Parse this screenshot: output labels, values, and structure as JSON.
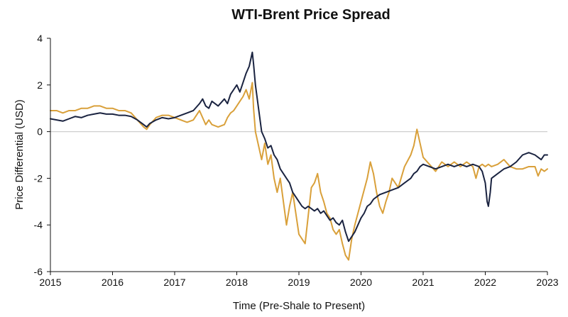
{
  "chart_data": {
    "type": "line",
    "title": "WTI-Brent Price Spread",
    "xlabel": "Time (Pre-Shale to Present)",
    "ylabel": "Price Differential (USD)",
    "x_ticks": [
      "2015",
      "2016",
      "2017",
      "2018",
      "2019",
      "2020",
      "2021",
      "2022",
      "2023"
    ],
    "y_ticks": [
      "4",
      "2",
      "0",
      "-2",
      "-4",
      "-6"
    ],
    "xlim": [
      2015,
      2023
    ],
    "ylim": [
      -6,
      4
    ],
    "zero_line": true,
    "grid": false,
    "legend": "none",
    "series": [
      {
        "color": "#1a2340",
        "points": [
          [
            2015.0,
            0.55
          ],
          [
            2015.1,
            0.5
          ],
          [
            2015.2,
            0.45
          ],
          [
            2015.3,
            0.55
          ],
          [
            2015.4,
            0.65
          ],
          [
            2015.5,
            0.6
          ],
          [
            2015.6,
            0.7
          ],
          [
            2015.7,
            0.75
          ],
          [
            2015.8,
            0.8
          ],
          [
            2015.9,
            0.75
          ],
          [
            2016.0,
            0.75
          ],
          [
            2016.1,
            0.7
          ],
          [
            2016.2,
            0.7
          ],
          [
            2016.3,
            0.65
          ],
          [
            2016.4,
            0.5
          ],
          [
            2016.5,
            0.3
          ],
          [
            2016.55,
            0.2
          ],
          [
            2016.6,
            0.35
          ],
          [
            2016.7,
            0.5
          ],
          [
            2016.8,
            0.6
          ],
          [
            2016.9,
            0.55
          ],
          [
            2017.0,
            0.6
          ],
          [
            2017.1,
            0.7
          ],
          [
            2017.2,
            0.8
          ],
          [
            2017.3,
            0.9
          ],
          [
            2017.4,
            1.2
          ],
          [
            2017.45,
            1.4
          ],
          [
            2017.5,
            1.1
          ],
          [
            2017.55,
            1.0
          ],
          [
            2017.6,
            1.3
          ],
          [
            2017.7,
            1.1
          ],
          [
            2017.8,
            1.4
          ],
          [
            2017.85,
            1.2
          ],
          [
            2017.9,
            1.6
          ],
          [
            2017.95,
            1.8
          ],
          [
            2018.0,
            2.0
          ],
          [
            2018.05,
            1.7
          ],
          [
            2018.1,
            2.1
          ],
          [
            2018.15,
            2.5
          ],
          [
            2018.2,
            2.8
          ],
          [
            2018.25,
            3.4
          ],
          [
            2018.27,
            2.9
          ],
          [
            2018.3,
            2.0
          ],
          [
            2018.35,
            1.0
          ],
          [
            2018.4,
            0.0
          ],
          [
            2018.45,
            -0.3
          ],
          [
            2018.5,
            -0.7
          ],
          [
            2018.55,
            -0.6
          ],
          [
            2018.6,
            -1.0
          ],
          [
            2018.65,
            -1.2
          ],
          [
            2018.7,
            -1.6
          ],
          [
            2018.75,
            -1.8
          ],
          [
            2018.8,
            -2.0
          ],
          [
            2018.85,
            -2.2
          ],
          [
            2018.9,
            -2.6
          ],
          [
            2018.95,
            -2.8
          ],
          [
            2019.0,
            -3.0
          ],
          [
            2019.05,
            -3.2
          ],
          [
            2019.1,
            -3.3
          ],
          [
            2019.15,
            -3.2
          ],
          [
            2019.2,
            -3.3
          ],
          [
            2019.25,
            -3.4
          ],
          [
            2019.3,
            -3.3
          ],
          [
            2019.35,
            -3.5
          ],
          [
            2019.4,
            -3.4
          ],
          [
            2019.45,
            -3.6
          ],
          [
            2019.5,
            -3.8
          ],
          [
            2019.55,
            -3.7
          ],
          [
            2019.6,
            -3.9
          ],
          [
            2019.65,
            -4.0
          ],
          [
            2019.7,
            -3.8
          ],
          [
            2019.75,
            -4.3
          ],
          [
            2019.8,
            -4.7
          ],
          [
            2019.85,
            -4.5
          ],
          [
            2019.9,
            -4.3
          ],
          [
            2019.95,
            -4.0
          ],
          [
            2020.0,
            -3.7
          ],
          [
            2020.05,
            -3.5
          ],
          [
            2020.1,
            -3.2
          ],
          [
            2020.15,
            -3.1
          ],
          [
            2020.2,
            -2.9
          ],
          [
            2020.25,
            -2.8
          ],
          [
            2020.3,
            -2.7
          ],
          [
            2020.4,
            -2.6
          ],
          [
            2020.5,
            -2.5
          ],
          [
            2020.6,
            -2.4
          ],
          [
            2020.7,
            -2.2
          ],
          [
            2020.8,
            -2.0
          ],
          [
            2020.85,
            -1.8
          ],
          [
            2020.9,
            -1.7
          ],
          [
            2020.95,
            -1.5
          ],
          [
            2021.0,
            -1.4
          ],
          [
            2021.1,
            -1.5
          ],
          [
            2021.2,
            -1.6
          ],
          [
            2021.3,
            -1.5
          ],
          [
            2021.4,
            -1.4
          ],
          [
            2021.5,
            -1.5
          ],
          [
            2021.6,
            -1.4
          ],
          [
            2021.7,
            -1.5
          ],
          [
            2021.8,
            -1.4
          ],
          [
            2021.9,
            -1.5
          ],
          [
            2021.95,
            -1.7
          ],
          [
            2022.0,
            -2.2
          ],
          [
            2022.03,
            -3.0
          ],
          [
            2022.05,
            -3.2
          ],
          [
            2022.08,
            -2.6
          ],
          [
            2022.1,
            -2.0
          ],
          [
            2022.2,
            -1.8
          ],
          [
            2022.3,
            -1.6
          ],
          [
            2022.4,
            -1.5
          ],
          [
            2022.5,
            -1.3
          ],
          [
            2022.6,
            -1.0
          ],
          [
            2022.7,
            -0.9
          ],
          [
            2022.8,
            -1.0
          ],
          [
            2022.85,
            -1.1
          ],
          [
            2022.9,
            -1.2
          ],
          [
            2022.95,
            -1.0
          ],
          [
            2023.0,
            -1.0
          ]
        ]
      },
      {
        "color": "#d9a03a",
        "points": [
          [
            2015.0,
            0.9
          ],
          [
            2015.1,
            0.9
          ],
          [
            2015.2,
            0.8
          ],
          [
            2015.3,
            0.9
          ],
          [
            2015.4,
            0.9
          ],
          [
            2015.5,
            1.0
          ],
          [
            2015.6,
            1.0
          ],
          [
            2015.7,
            1.1
          ],
          [
            2015.8,
            1.1
          ],
          [
            2015.9,
            1.0
          ],
          [
            2016.0,
            1.0
          ],
          [
            2016.1,
            0.9
          ],
          [
            2016.2,
            0.9
          ],
          [
            2016.3,
            0.8
          ],
          [
            2016.4,
            0.5
          ],
          [
            2016.5,
            0.2
          ],
          [
            2016.55,
            0.1
          ],
          [
            2016.6,
            0.3
          ],
          [
            2016.7,
            0.6
          ],
          [
            2016.8,
            0.7
          ],
          [
            2016.9,
            0.7
          ],
          [
            2017.0,
            0.6
          ],
          [
            2017.1,
            0.5
          ],
          [
            2017.2,
            0.4
          ],
          [
            2017.3,
            0.5
          ],
          [
            2017.4,
            0.9
          ],
          [
            2017.45,
            0.6
          ],
          [
            2017.5,
            0.3
          ],
          [
            2017.55,
            0.5
          ],
          [
            2017.6,
            0.3
          ],
          [
            2017.7,
            0.2
          ],
          [
            2017.8,
            0.3
          ],
          [
            2017.85,
            0.6
          ],
          [
            2017.9,
            0.8
          ],
          [
            2017.95,
            0.9
          ],
          [
            2018.0,
            1.1
          ],
          [
            2018.05,
            1.3
          ],
          [
            2018.1,
            1.5
          ],
          [
            2018.15,
            1.8
          ],
          [
            2018.2,
            1.4
          ],
          [
            2018.25,
            2.1
          ],
          [
            2018.27,
            1.0
          ],
          [
            2018.3,
            0.0
          ],
          [
            2018.35,
            -0.6
          ],
          [
            2018.4,
            -1.2
          ],
          [
            2018.45,
            -0.5
          ],
          [
            2018.5,
            -1.4
          ],
          [
            2018.55,
            -1.0
          ],
          [
            2018.6,
            -2.0
          ],
          [
            2018.65,
            -2.6
          ],
          [
            2018.7,
            -2.0
          ],
          [
            2018.75,
            -3.0
          ],
          [
            2018.8,
            -4.0
          ],
          [
            2018.85,
            -3.2
          ],
          [
            2018.9,
            -2.6
          ],
          [
            2018.95,
            -3.5
          ],
          [
            2019.0,
            -4.4
          ],
          [
            2019.05,
            -4.6
          ],
          [
            2019.1,
            -4.8
          ],
          [
            2019.15,
            -3.6
          ],
          [
            2019.2,
            -2.4
          ],
          [
            2019.25,
            -2.2
          ],
          [
            2019.3,
            -1.8
          ],
          [
            2019.35,
            -2.6
          ],
          [
            2019.4,
            -3.0
          ],
          [
            2019.45,
            -3.5
          ],
          [
            2019.5,
            -3.7
          ],
          [
            2019.55,
            -4.2
          ],
          [
            2019.6,
            -4.4
          ],
          [
            2019.65,
            -4.2
          ],
          [
            2019.7,
            -4.8
          ],
          [
            2019.75,
            -5.3
          ],
          [
            2019.8,
            -5.5
          ],
          [
            2019.85,
            -4.6
          ],
          [
            2019.9,
            -4.0
          ],
          [
            2019.95,
            -3.5
          ],
          [
            2020.0,
            -3.0
          ],
          [
            2020.05,
            -2.5
          ],
          [
            2020.1,
            -2.0
          ],
          [
            2020.15,
            -1.3
          ],
          [
            2020.2,
            -1.8
          ],
          [
            2020.25,
            -2.6
          ],
          [
            2020.3,
            -3.2
          ],
          [
            2020.35,
            -3.5
          ],
          [
            2020.4,
            -3.0
          ],
          [
            2020.45,
            -2.6
          ],
          [
            2020.5,
            -2.0
          ],
          [
            2020.6,
            -2.4
          ],
          [
            2020.7,
            -1.5
          ],
          [
            2020.8,
            -1.0
          ],
          [
            2020.85,
            -0.6
          ],
          [
            2020.9,
            0.1
          ],
          [
            2020.95,
            -0.5
          ],
          [
            2021.0,
            -1.1
          ],
          [
            2021.1,
            -1.4
          ],
          [
            2021.2,
            -1.7
          ],
          [
            2021.3,
            -1.3
          ],
          [
            2021.4,
            -1.5
          ],
          [
            2021.5,
            -1.3
          ],
          [
            2021.6,
            -1.5
          ],
          [
            2021.7,
            -1.3
          ],
          [
            2021.8,
            -1.5
          ],
          [
            2021.85,
            -2.0
          ],
          [
            2021.9,
            -1.5
          ],
          [
            2021.95,
            -1.4
          ],
          [
            2022.0,
            -1.5
          ],
          [
            2022.05,
            -1.4
          ],
          [
            2022.1,
            -1.5
          ],
          [
            2022.2,
            -1.4
          ],
          [
            2022.3,
            -1.2
          ],
          [
            2022.4,
            -1.5
          ],
          [
            2022.5,
            -1.6
          ],
          [
            2022.6,
            -1.6
          ],
          [
            2022.7,
            -1.5
          ],
          [
            2022.8,
            -1.5
          ],
          [
            2022.85,
            -1.9
          ],
          [
            2022.9,
            -1.6
          ],
          [
            2022.95,
            -1.7
          ],
          [
            2023.0,
            -1.6
          ]
        ]
      }
    ]
  }
}
